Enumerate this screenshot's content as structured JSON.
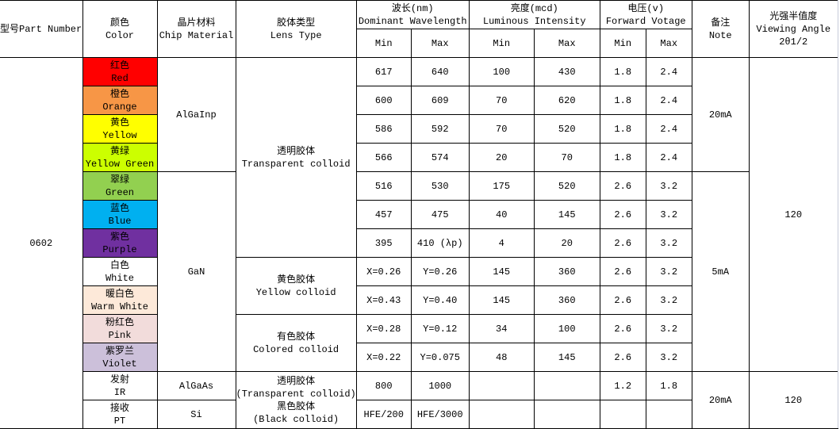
{
  "header": {
    "part_number": "型号Part Number",
    "color": [
      "颜色",
      "Color"
    ],
    "chip": [
      "晶片材料",
      "Chip Material"
    ],
    "lens": [
      "胶体类型",
      "Lens Type"
    ],
    "wavelength": [
      "波长(nm)",
      "Dominant Wavelength"
    ],
    "intensity": [
      "亮度(mcd)",
      "Luminous Intensity"
    ],
    "voltage": [
      "电压(v)",
      "Forward Votage"
    ],
    "note": [
      "备注",
      "Note"
    ],
    "angle": [
      "光强半值度",
      "Viewing Angle",
      "2θ1/2"
    ],
    "min": "Min",
    "max": "Max"
  },
  "part_number": "0602",
  "rows": [
    {
      "color_cn": "红色",
      "color_en": "Red",
      "bg": "#FF0000",
      "wl_min": "617",
      "wl_max": "640",
      "iv_min": "100",
      "iv_max": "430",
      "vf_min": "1.8",
      "vf_max": "2.4"
    },
    {
      "color_cn": "橙色",
      "color_en": "Orange",
      "bg": "#F79646",
      "wl_min": "600",
      "wl_max": "609",
      "iv_min": "70",
      "iv_max": "620",
      "vf_min": "1.8",
      "vf_max": "2.4"
    },
    {
      "color_cn": "黄色",
      "color_en": "Yellow",
      "bg": "#FFFF00",
      "wl_min": "586",
      "wl_max": "592",
      "iv_min": "70",
      "iv_max": "520",
      "vf_min": "1.8",
      "vf_max": "2.4"
    },
    {
      "color_cn": "黄绿",
      "color_en": "Yellow Green",
      "bg": "#CCFF00",
      "wl_min": "566",
      "wl_max": "574",
      "iv_min": "20",
      "iv_max": "70",
      "vf_min": "1.8",
      "vf_max": "2.4"
    },
    {
      "color_cn": "翠绿",
      "color_en": "Green",
      "bg": "#92D050",
      "wl_min": "516",
      "wl_max": "530",
      "iv_min": "175",
      "iv_max": "520",
      "vf_min": "2.6",
      "vf_max": "3.2"
    },
    {
      "color_cn": "蓝色",
      "color_en": "Blue",
      "bg": "#00B0F0",
      "wl_min": "457",
      "wl_max": "475",
      "iv_min": "40",
      "iv_max": "145",
      "vf_min": "2.6",
      "vf_max": "3.2"
    },
    {
      "color_cn": "紫色",
      "color_en": "Purple",
      "bg": "#7030A0",
      "wl_min": "395",
      "wl_max": "410 (λp)",
      "iv_min": "4",
      "iv_max": "20",
      "vf_min": "2.6",
      "vf_max": "3.2"
    },
    {
      "color_cn": "白色",
      "color_en": "White",
      "bg": "#FFFFFF",
      "wl_min": "X=0.26",
      "wl_max": "Y=0.26",
      "iv_min": "145",
      "iv_max": "360",
      "vf_min": "2.6",
      "vf_max": "3.2"
    },
    {
      "color_cn": "暖白色",
      "color_en": "Warm White",
      "bg": "#FDE9D9",
      "wl_min": "X=0.43",
      "wl_max": "Y=0.40",
      "iv_min": "145",
      "iv_max": "360",
      "vf_min": "2.6",
      "vf_max": "3.2"
    },
    {
      "color_cn": "粉红色",
      "color_en": "Pink",
      "bg": "#F2DCDB",
      "wl_min": "X=0.28",
      "wl_max": "Y=0.12",
      "iv_min": "34",
      "iv_max": "100",
      "vf_min": "2.6",
      "vf_max": "3.2"
    },
    {
      "color_cn": "紫罗兰",
      "color_en": "Violet",
      "bg": "#CCC0DA",
      "wl_min": "X=0.22",
      "wl_max": "Y=0.075",
      "iv_min": "48",
      "iv_max": "145",
      "vf_min": "2.6",
      "vf_max": "3.2"
    },
    {
      "color_cn": "发射",
      "color_en": "IR",
      "bg": "#FFFFFF",
      "wl_min": "800",
      "wl_max": "1000",
      "iv_min": "",
      "iv_max": "",
      "vf_min": "1.2",
      "vf_max": "1.8"
    },
    {
      "color_cn": "接收",
      "color_en": "PT",
      "bg": "#FFFFFF",
      "wl_min": "HFE/200",
      "wl_max": "HFE/3000",
      "iv_min": "",
      "iv_max": "",
      "vf_min": "",
      "vf_max": ""
    }
  ],
  "chip_groups": [
    "AlGaInp",
    "GaN",
    "AlGaAs",
    "Si"
  ],
  "lens_groups": [
    [
      "透明胶体",
      "Transparent colloid"
    ],
    [
      "黄色胶体",
      "Yellow colloid"
    ],
    [
      "有色胶体",
      "Colored colloid"
    ],
    [
      "透明胶体",
      "(Transparent colloid)",
      "黑色胶体",
      "(Black colloid)"
    ]
  ],
  "note_groups": [
    "20mA",
    "5mA",
    "20mA"
  ],
  "angle_groups": [
    "120",
    "120"
  ]
}
